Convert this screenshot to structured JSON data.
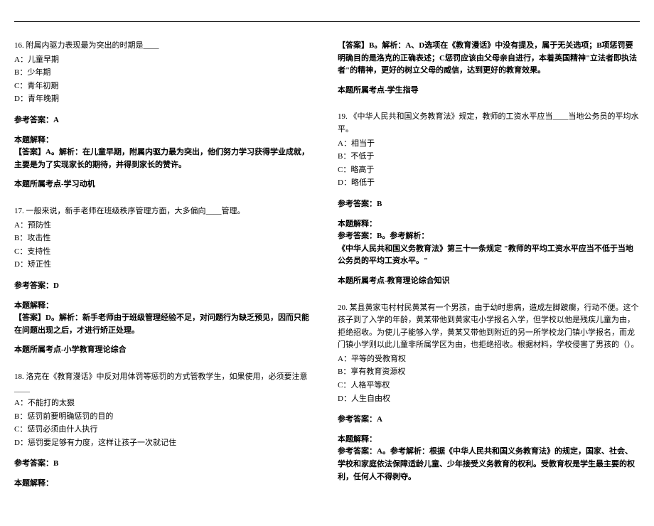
{
  "left_column": {
    "q16": {
      "text": "16. 附属内驱力表现最为突出的时期是____",
      "options": {
        "a": "A：儿童早期",
        "b": "B：少年期",
        "c": "C：青年初期",
        "d": "D：青年晚期"
      },
      "answer_label": "参考答案：A",
      "explain_label": "本题解释：",
      "explain_text": "【答案】A。解析：在儿童早期，附属内驱力最为突出，他们努力学习获得学业成就，主要是为了实现家长的期待，并得到家长的赞许。",
      "topic": "本题所属考点-学习动机"
    },
    "q17": {
      "text": "17. 一般来说，新手老师在班级秩序管理方面，大多偏向____管理。",
      "options": {
        "a": "A：预防性",
        "b": "B：攻击性",
        "c": "C：支持性",
        "d": "D：矫正性"
      },
      "answer_label": "参考答案：D",
      "explain_label": "本题解释：",
      "explain_text": "【答案】D。解析：新手老师由于班级管理经验不足，对问题行为缺乏预见，因而只能在问题出现之后，才进行矫正处理。",
      "topic": "本题所属考点-小学教育理论综合"
    },
    "q18": {
      "text": "18. 洛克在《教育漫话》中反对用体罚等惩罚的方式管教学生，如果使用，必须要注意____",
      "options": {
        "a": "A：不能打的太狠",
        "b": "B：惩罚前要明确惩罚的目的",
        "c": "C：惩罚必须由什人执行",
        "d": "D：惩罚要足够有力度，这样让孩子一次就记住"
      },
      "answer_label": "参考答案：B",
      "explain_label": "本题解释："
    }
  },
  "right_column": {
    "q18_cont": {
      "explain_text": "【答案】B。解析：A、D选项在《教育漫话》中没有提及，属于无关选项；B项惩罚要明确目的是洛克的正确表述；C惩罚应该由父母亲自进行，本着英国精神\"立法者即执法者\"的精神，更好的树立父母的威信，达到更好的教育效果。",
      "topic": "本题所属考点-学生指导"
    },
    "q19": {
      "text": "19. 《中华人民共和国义务教育法》规定，教师的工资水平应当____当地公务员的平均水平。",
      "options": {
        "a": "A：相当于",
        "b": "B：不低于",
        "c": "C：略高于",
        "d": "D：略低于"
      },
      "answer_label": "参考答案：B",
      "explain_label": "本题解释：",
      "explain_text": "参考答案：B。参考解析：",
      "explain_text2": "《中华人民共和国义务教育法》第三十一条规定 \"教师的平均工资水平应当不低于当地公务员的平均工资水平。\"",
      "topic": "本题所属考点-教育理论综合知识"
    },
    "q20": {
      "text": "20. 某县黄家屯村村民黄某有一个男孩，由于幼时患病，造成左脚跛瘸，行动不便。这个孩子到了入学的年龄，黄某带他到黄家屯小学报名入学，但学校以他是残疾儿童为由，拒绝招收。为使儿子能够入学，黄某又带他到附近的另一所学校龙门镇小学报名，而龙门镇小学则以此儿童非所属学区为由，也拒绝招收。根据材料，学校侵害了男孩的（）。",
      "options": {
        "a": "A：平等的受教育权",
        "b": "B：享有教育资源权",
        "c": "C：人格平等权",
        "d": "D：人生自由权"
      },
      "answer_label": "参考答案：A",
      "explain_label": "本题解释：",
      "explain_text": "参考答案：A。参考解析：根据《中华人民共和国义务教育法》的规定，国家、社会、学校和家庭依法保障适龄儿童、少年接受义务教育的权利。受教育权是学生最主要的权利，任何人不得剥夺。"
    }
  }
}
